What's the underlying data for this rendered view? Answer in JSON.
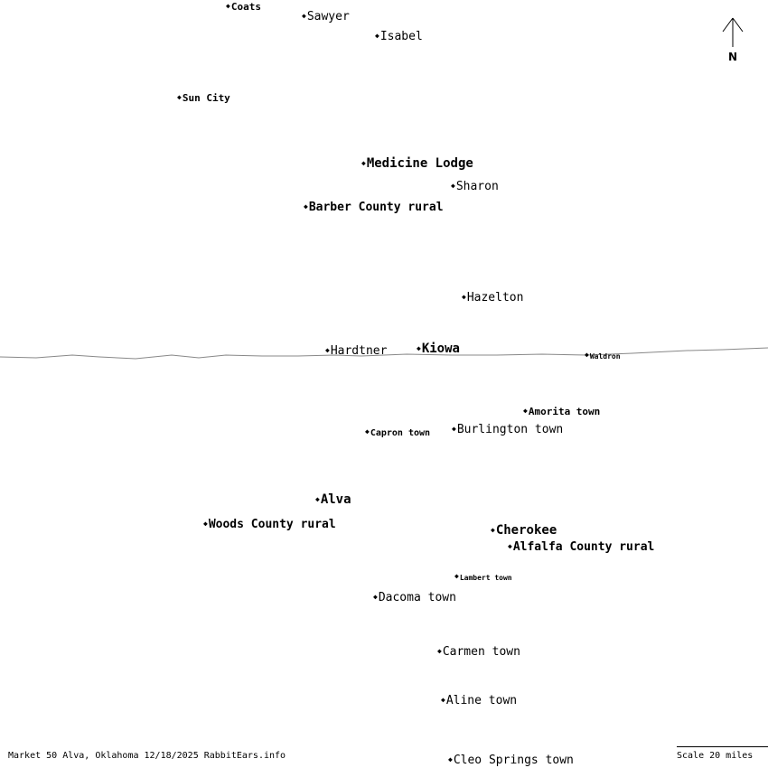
{
  "towns": [
    {
      "id": "coats",
      "name": "Coats"
    },
    {
      "id": "sawyer",
      "name": "Sawyer"
    },
    {
      "id": "isabel",
      "name": "Isabel"
    },
    {
      "id": "sun-city",
      "name": "Sun City"
    },
    {
      "id": "medicine-lodge",
      "name": "Medicine Lodge"
    },
    {
      "id": "sharon",
      "name": "Sharon"
    },
    {
      "id": "barber-county-rural",
      "name": "Barber County rural"
    },
    {
      "id": "hazelton",
      "name": "Hazelton"
    },
    {
      "id": "hardtner",
      "name": "Hardtner"
    },
    {
      "id": "kiowa",
      "name": "Kiowa"
    },
    {
      "id": "waldron",
      "name": "Waldron"
    },
    {
      "id": "amorita-town",
      "name": "Amorita town"
    },
    {
      "id": "capron-town",
      "name": "Capron town"
    },
    {
      "id": "burlington-town",
      "name": "Burlington town"
    },
    {
      "id": "alva",
      "name": "Alva"
    },
    {
      "id": "woods-county-rural",
      "name": "Woods County rural"
    },
    {
      "id": "cherokee",
      "name": "Cherokee"
    },
    {
      "id": "alfalfa-county-rural",
      "name": "Alfalfa County rural"
    },
    {
      "id": "lambert-town",
      "name": "Lambert town"
    },
    {
      "id": "dacoma-town",
      "name": "Dacoma town"
    },
    {
      "id": "carmen-town",
      "name": "Carmen town"
    },
    {
      "id": "aline-town",
      "name": "Aline town"
    },
    {
      "id": "cleo-springs-town",
      "name": "Cleo Springs town"
    }
  ],
  "north_label": "N",
  "footer": "Market 50 Alva, Oklahoma 12/18/2025 RabbitEars.info",
  "scale_label": "Scale 20 miles",
  "colors": {
    "background": "#ffffff",
    "text": "#000000",
    "border_line": "#888888"
  }
}
